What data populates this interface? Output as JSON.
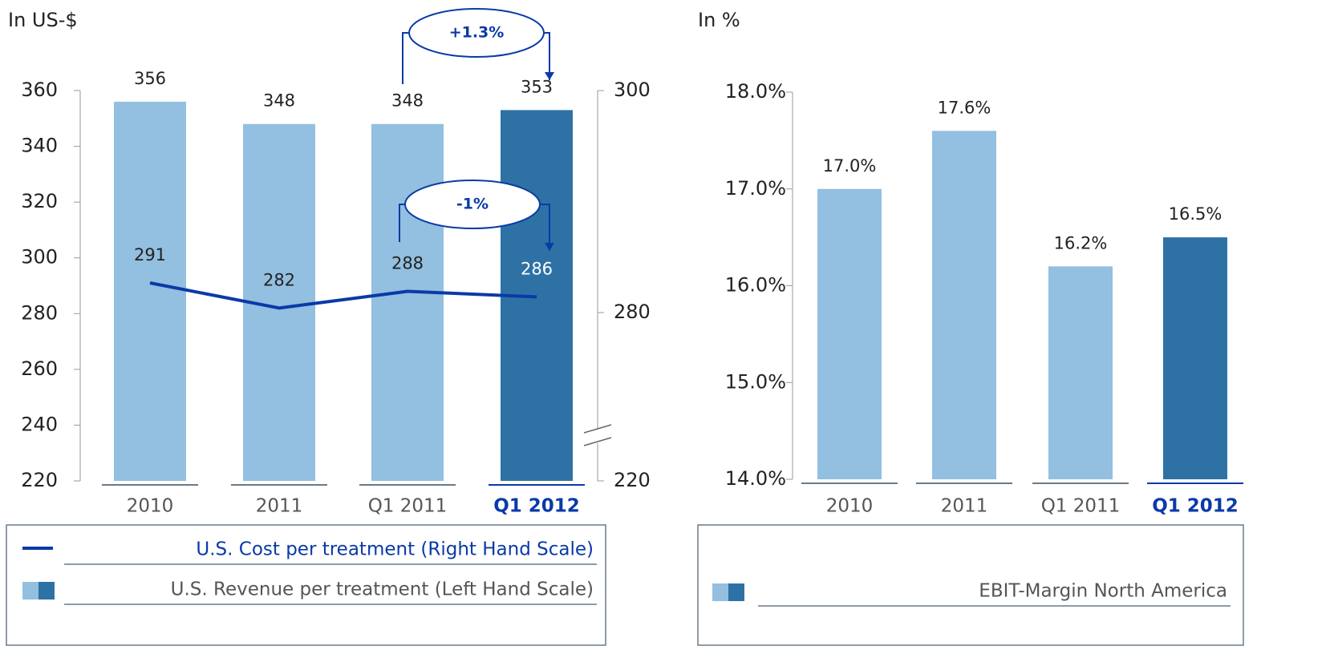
{
  "chart_data": [
    {
      "type": "bar",
      "axis_label": "In US-$",
      "categories": [
        "2010",
        "2011",
        "Q1 2011",
        "Q1 2012"
      ],
      "highlight": 3,
      "ylim": [
        220,
        360
      ],
      "yticks": [
        220,
        240,
        260,
        280,
        300,
        320,
        340,
        360
      ],
      "y2lim": [
        220,
        300
      ],
      "y2ticks": [
        220,
        280,
        300
      ],
      "y2_break": [
        220,
        280
      ],
      "series": [
        {
          "name": "U.S. Cost per treatment (Right Hand Scale)",
          "type": "line",
          "color": "#0a3aa8",
          "values": [
            291,
            282,
            288,
            286
          ]
        },
        {
          "name": "U.S. Revenue per treatment (Left Hand Scale)",
          "type": "bar",
          "colors": [
            "#93bfe0",
            "#93bfe0",
            "#93bfe0",
            "#2e72a5"
          ],
          "values": [
            356,
            348,
            348,
            353
          ]
        }
      ],
      "annotations": [
        "+1.3%",
        "-1%"
      ]
    },
    {
      "type": "bar",
      "axis_label": "In %",
      "categories": [
        "2010",
        "2011",
        "Q1 2011",
        "Q1 2012"
      ],
      "highlight": 3,
      "ylim": [
        14,
        18
      ],
      "yticks": [
        {
          "value": 14,
          "label": "14.0%"
        },
        {
          "value": 15,
          "label": "15.0%"
        },
        {
          "value": 16,
          "label": "16.0%"
        },
        {
          "value": 17,
          "label": "17.0%"
        },
        {
          "value": 18,
          "label": "18.0%"
        }
      ],
      "series": [
        {
          "name": "EBIT-Margin North America",
          "type": "bar",
          "colors": [
            "#93bfe0",
            "#93bfe0",
            "#93bfe0",
            "#2e72a5"
          ],
          "values": [
            17.0,
            17.6,
            16.2,
            16.5
          ],
          "value_labels": [
            "17.0%",
            "17.6%",
            "16.2%",
            "16.5%"
          ]
        }
      ]
    }
  ]
}
